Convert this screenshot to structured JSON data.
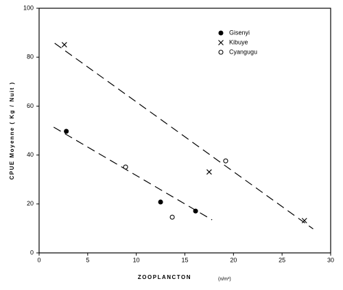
{
  "chart_data": {
    "type": "scatter",
    "xlabel": "ZOOPLANCTON",
    "xunit": "(n/m³)",
    "ylabel": "CPUE Moyenne ( Kg / Nuit )",
    "xlim": [
      0,
      30
    ],
    "xticks": [
      0,
      5,
      10,
      15,
      20,
      25,
      30
    ],
    "ylim": [
      0,
      100
    ],
    "yticks": [
      0,
      20,
      40,
      60,
      80,
      100
    ],
    "color": "#000000",
    "series": [
      {
        "name": "Gisenyi",
        "marker": "filled-circle",
        "x": [
          2.8,
          12.5,
          16.1
        ],
        "values": [
          49.7,
          20.8,
          17.1
        ]
      },
      {
        "name": "Kibuye",
        "marker": "x",
        "x": [
          2.6,
          17.5,
          27.3
        ],
        "values": [
          85.1,
          33.1,
          13.2
        ]
      },
      {
        "name": "Cyangugu",
        "marker": "open-circle",
        "x": [
          8.9,
          13.7,
          19.2
        ],
        "values": [
          35.1,
          14.6,
          37.6
        ]
      }
    ],
    "lines": [
      {
        "x": [
          1.6,
          28.2
        ],
        "values": [
          85.7,
          9.8
        ]
      },
      {
        "x": [
          1.5,
          17.8
        ],
        "values": [
          51.4,
          13.5
        ]
      }
    ]
  }
}
